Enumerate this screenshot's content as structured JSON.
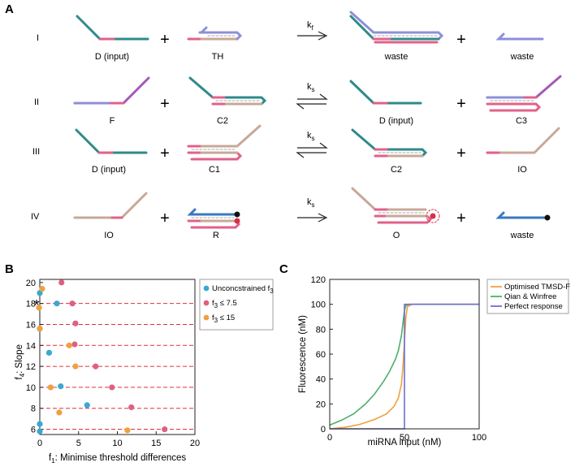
{
  "panel_a": {
    "letter": "A",
    "rows": [
      {
        "roman": "I",
        "left_label": "D (input)",
        "mid_label": "TH",
        "rate": "k",
        "rate_sub": "f",
        "right_label": "waste",
        "far_label": "waste"
      },
      {
        "roman": "II",
        "left_label": "F",
        "mid_label": "C2",
        "rate": "k",
        "rate_sub": "s",
        "right_label": "D (input)",
        "far_label": "C3"
      },
      {
        "roman": "III",
        "left_label": "D (input)",
        "mid_label": "C1",
        "rate": "k",
        "rate_sub": "s",
        "right_label": "C2",
        "far_label": "IO"
      },
      {
        "roman": "IV",
        "left_label": "IO",
        "mid_label": "R",
        "rate": "k",
        "rate_sub": "s",
        "right_label": "O",
        "far_label": "waste"
      }
    ],
    "colors": {
      "teal": "#2f8a8a",
      "pink": "#e0618a",
      "purple": "#a15ab8",
      "lavender": "#8c8fd8",
      "tan": "#c8a898",
      "blue": "#3a78c0",
      "red": "#d42e4a"
    }
  },
  "chart_data": [
    {
      "panel": "B",
      "type": "scatter",
      "xlabel_pre": "f",
      "xlabel_sub": "1",
      "xlabel_post": ": Minimise threshold differences",
      "ylabel_pre": "f",
      "ylabel_sub": "4",
      "ylabel_post": ": Slope",
      "xlim": [
        0,
        20
      ],
      "ylim": [
        5.5,
        20.3
      ],
      "xticks": [
        0,
        5,
        10,
        15,
        20
      ],
      "yticks": [
        6,
        8,
        10,
        12,
        14,
        16,
        18,
        20
      ],
      "hlines": [
        6,
        8,
        10,
        12,
        14,
        16,
        18
      ],
      "hline_color": "#e0303a",
      "marker": {
        "symbol": "*",
        "x": -0.3,
        "y": 17.9
      },
      "series": [
        {
          "name_pre": "Unconcstrained f",
          "name_sub": "3",
          "name_post": "",
          "color": "#3aa8d0",
          "points": [
            [
              0,
              19.0
            ],
            [
              2.2,
              18.0
            ],
            [
              0,
              15.6
            ],
            [
              1.2,
              13.3
            ],
            [
              2.7,
              10.1
            ],
            [
              6.1,
              8.3
            ],
            [
              0,
              6.5
            ],
            [
              0,
              5.8
            ]
          ]
        },
        {
          "name_pre": "f",
          "name_sub": "3",
          "name_post": " ≤ 7.5",
          "color": "#e06080",
          "points": [
            [
              2.8,
              20.0
            ],
            [
              4.2,
              18.0
            ],
            [
              4.6,
              16.1
            ],
            [
              4.5,
              14.1
            ],
            [
              7.2,
              12.0
            ],
            [
              9.3,
              10.0
            ],
            [
              11.8,
              8.1
            ],
            [
              16.1,
              6.0
            ]
          ]
        },
        {
          "name_pre": "f",
          "name_sub": "3",
          "name_post": " ≤ 15",
          "color": "#f0a040",
          "points": [
            [
              0.3,
              19.4
            ],
            [
              -0.1,
              17.6
            ],
            [
              0,
              15.6
            ],
            [
              3.8,
              14.0
            ],
            [
              4.6,
              12.0
            ],
            [
              1.4,
              10.0
            ],
            [
              2.5,
              7.6
            ],
            [
              11.3,
              5.9
            ]
          ]
        }
      ]
    },
    {
      "panel": "C",
      "type": "line",
      "xlabel": "miRNA input (nM)",
      "ylabel": "Fluorescence (nM)",
      "xlim": [
        0,
        100
      ],
      "ylim": [
        0,
        120
      ],
      "xticks": [
        0,
        50,
        100
      ],
      "yticks": [
        0,
        20,
        40,
        60,
        80,
        100,
        120
      ],
      "series": [
        {
          "name": "Optimised TMSD-F",
          "color": "#f0a040",
          "points": [
            [
              0,
              0
            ],
            [
              10,
              1.2
            ],
            [
              20,
              3.5
            ],
            [
              30,
              7.5
            ],
            [
              38,
              12
            ],
            [
              43,
              18
            ],
            [
              46,
              25
            ],
            [
              48,
              36
            ],
            [
              49,
              50
            ],
            [
              50,
              70
            ],
            [
              51,
              90
            ],
            [
              52,
              98
            ],
            [
              55,
              100
            ],
            [
              100,
              100
            ]
          ]
        },
        {
          "name": "Qian & Winfree",
          "color": "#4caf6a",
          "points": [
            [
              0,
              3
            ],
            [
              8,
              7
            ],
            [
              16,
              12
            ],
            [
              24,
              20
            ],
            [
              30,
              28
            ],
            [
              36,
              38
            ],
            [
              40,
              46
            ],
            [
              44,
              56
            ],
            [
              46,
              63
            ],
            [
              48,
              75
            ],
            [
              49,
              85
            ],
            [
              50,
              95
            ],
            [
              51,
              99
            ],
            [
              53,
              100
            ],
            [
              100,
              100
            ]
          ]
        },
        {
          "name": "Perfect response",
          "color": "#7070d0",
          "points": [
            [
              0,
              0
            ],
            [
              50,
              0
            ],
            [
              50,
              100
            ],
            [
              100,
              100
            ]
          ]
        }
      ]
    }
  ]
}
